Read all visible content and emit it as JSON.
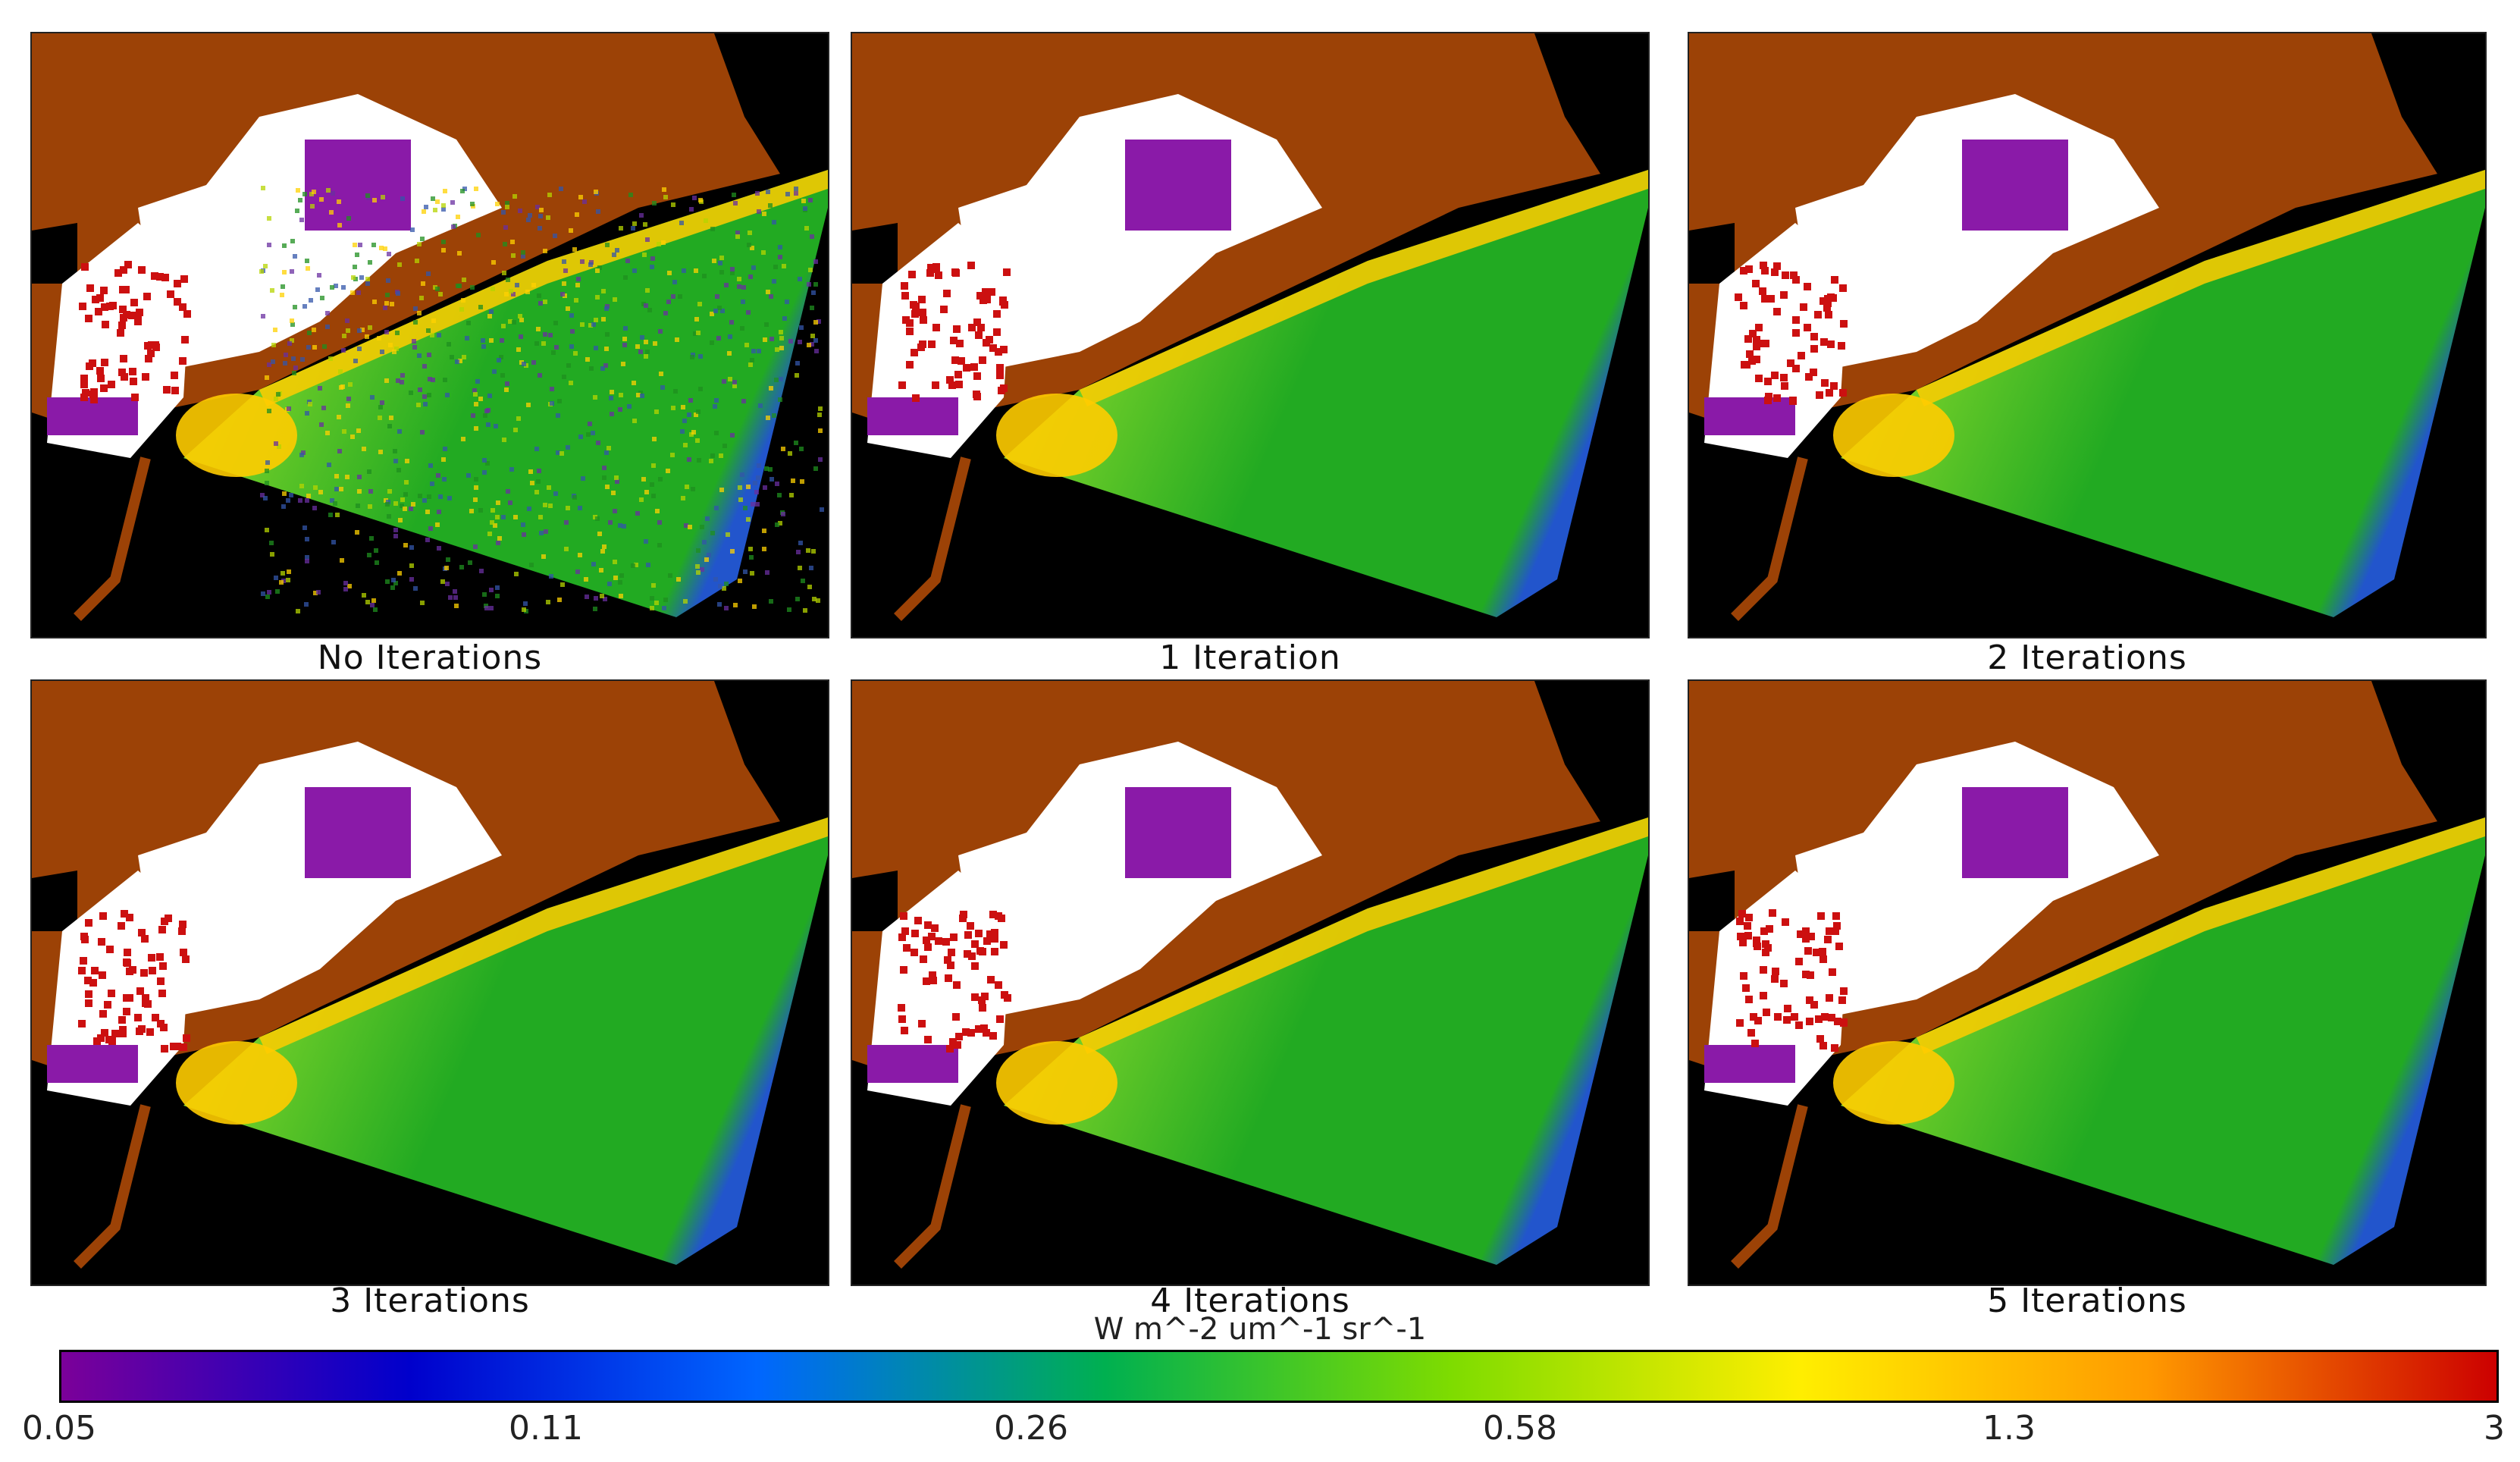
{
  "panels": [
    {
      "caption": "No Iterations",
      "noise_level": "high"
    },
    {
      "caption": "1 Iteration",
      "noise_level": "low"
    },
    {
      "caption": "2 Iterations",
      "noise_level": "low"
    },
    {
      "caption": "3 Iterations",
      "noise_level": "low"
    },
    {
      "caption": "4 Iterations",
      "noise_level": "low"
    },
    {
      "caption": "5 Iterations",
      "noise_level": "low"
    }
  ],
  "colorbar": {
    "units": "W m^-2 um^-1 sr^-1",
    "ticks": [
      "0.05",
      "0.11",
      "0.26",
      "0.58",
      "1.3",
      "3"
    ],
    "colors": [
      "#7b0099",
      "#0000cc",
      "#0066ff",
      "#00b050",
      "#7fdc00",
      "#ffee00",
      "#ff9900",
      "#cc0000"
    ]
  },
  "colors": {
    "land": "#9c4206",
    "background": "#000000",
    "masked": "#ffffff",
    "water_low": "#22aa22",
    "water_mid": "#7fd42a",
    "coast": "#ffcc00"
  }
}
